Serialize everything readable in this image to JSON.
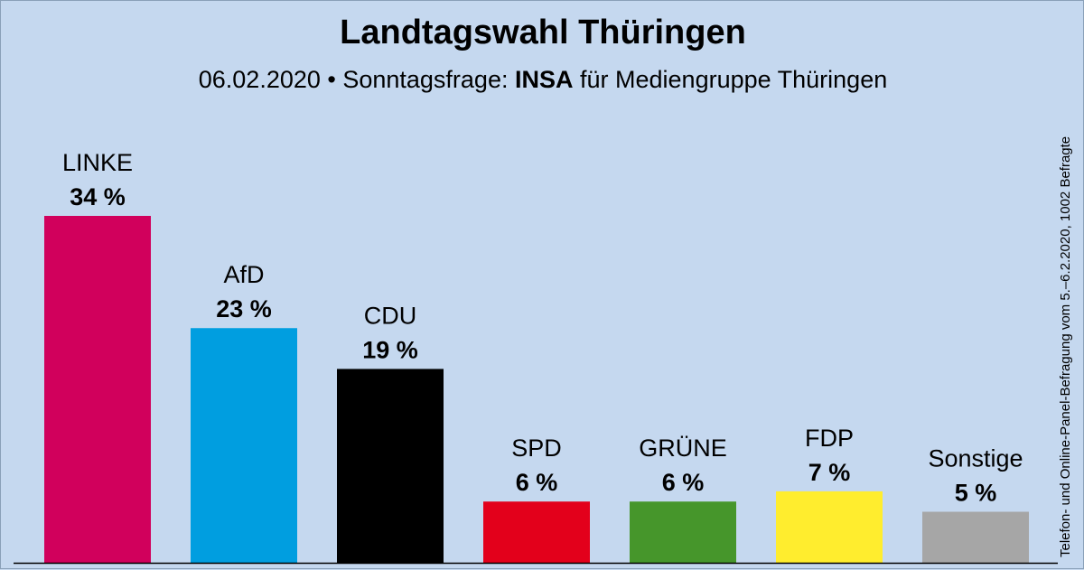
{
  "title": "Landtagswahl Thüringen",
  "subtitle": {
    "date_prefix": "06.02.2020 • Sonntagsfrage: ",
    "institute": "INSA",
    "client_suffix": " für Mediengruppe Thüringen"
  },
  "source_note": "Telefon- und Online-Panel-Befragung vom 5.–6.2.2020, 1002 Befragte",
  "chart_data": {
    "type": "bar",
    "title": "Landtagswahl Thüringen",
    "subtitle": "06.02.2020 • Sonntagsfrage: INSA für Mediengruppe Thüringen",
    "xlabel": "",
    "ylabel": "",
    "ylim": [
      0,
      34
    ],
    "unit": "%",
    "grid": false,
    "categories": [
      "LINKE",
      "AfD",
      "CDU",
      "SPD",
      "GRÜNE",
      "FDP",
      "Sonstige"
    ],
    "values": [
      34,
      23,
      19,
      6,
      6,
      7,
      5
    ],
    "value_labels": [
      "34 %",
      "23 %",
      "19 %",
      "6 %",
      "6 %",
      "7 %",
      "5 %"
    ],
    "colors": [
      "#d1005c",
      "#009ee0",
      "#000000",
      "#e3001b",
      "#46962b",
      "#ffed2e",
      "#a6a6a6"
    ]
  }
}
